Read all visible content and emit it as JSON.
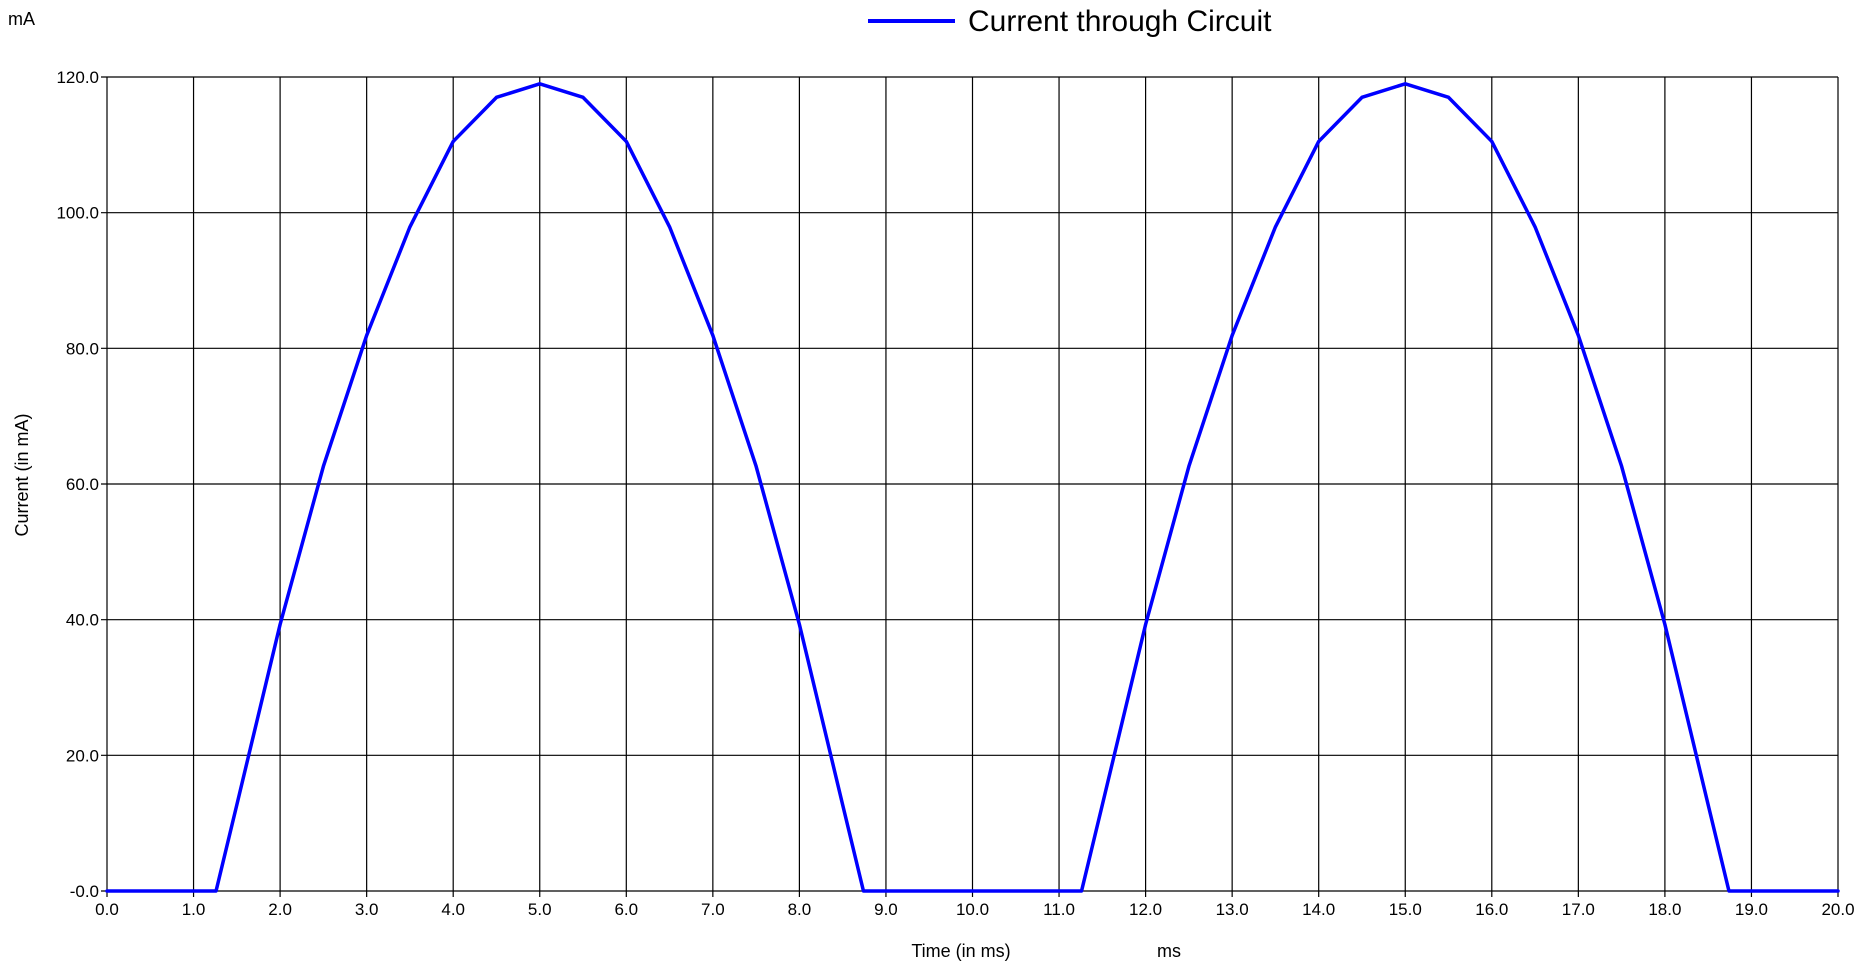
{
  "colors": {
    "series": "#0000ff",
    "grid": "#000000",
    "background": "#ffffff"
  },
  "chart_data": {
    "type": "line",
    "title": "",
    "xlabel": "Time (in ms)",
    "ylabel": "Current (in mA)",
    "x_unit": "ms",
    "y_unit": "mA",
    "xlim": [
      0,
      20
    ],
    "ylim": [
      0,
      120
    ],
    "grid": true,
    "legend_position": "top",
    "x_ticks": [
      "0.0",
      "1.0",
      "2.0",
      "3.0",
      "4.0",
      "5.0",
      "6.0",
      "7.0",
      "8.0",
      "9.0",
      "10.0",
      "11.0",
      "12.0",
      "13.0",
      "14.0",
      "15.0",
      "16.0",
      "17.0",
      "18.0",
      "19.0",
      "20.0"
    ],
    "y_ticks": [
      "-0.0",
      "20.0",
      "40.0",
      "60.0",
      "80.0",
      "100.0",
      "120.0"
    ],
    "series": [
      {
        "name": "Current through Circuit",
        "x": [
          0.0,
          1.0,
          1.26,
          1.5,
          2.0,
          2.5,
          3.0,
          3.5,
          4.0,
          4.5,
          5.0,
          5.5,
          6.0,
          6.5,
          7.0,
          7.5,
          8.0,
          8.5,
          8.74,
          9.0,
          10.0,
          11.0,
          11.26,
          11.5,
          12.0,
          12.5,
          13.0,
          13.5,
          14.0,
          14.5,
          15.0,
          15.5,
          16.0,
          16.5,
          17.0,
          17.5,
          18.0,
          18.5,
          18.74,
          19.0,
          20.0
        ],
        "y": [
          0.0,
          0.0,
          0.0,
          12.7,
          39.3,
          62.6,
          81.9,
          97.9,
          110.5,
          117.0,
          119.0,
          117.0,
          110.5,
          97.9,
          81.9,
          62.6,
          39.3,
          12.7,
          0.0,
          0.0,
          0.0,
          0.0,
          0.0,
          12.7,
          39.3,
          62.6,
          81.9,
          97.9,
          110.5,
          117.0,
          119.0,
          117.0,
          110.5,
          97.9,
          81.9,
          62.6,
          39.3,
          12.7,
          0.0,
          0.0,
          0.0
        ]
      }
    ]
  }
}
